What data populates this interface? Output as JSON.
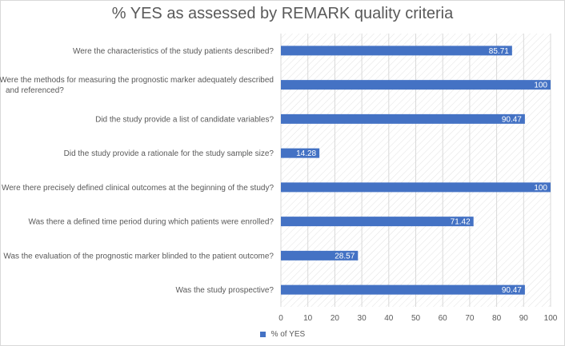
{
  "chart_data": {
    "type": "bar",
    "orientation": "horizontal",
    "title": "% YES as assessed by REMARK quality criteria",
    "categories": [
      "Were the characteristics of the study patients described?",
      "Were the methods for measuring the prognostic marker adequately described and referenced?",
      "Did the study provide a list of candidate variables?",
      "Did the study provide a rationale for the study sample size?",
      "Were there precisely defined clinical outcomes at the beginning of the study?",
      "Was there a defined time period during which patients were enrolled?",
      "Was the evaluation of the prognostic marker blinded to the patient outcome?",
      "Was the study prospective?"
    ],
    "category_lines": [
      [
        "Were the characteristics of the study patients described?"
      ],
      [
        "Were the methods for measuring the prognostic marker adequately described",
        "and referenced?"
      ],
      [
        "Did the study provide a list of candidate variables?"
      ],
      [
        "Did the study provide a rationale for the study sample size?"
      ],
      [
        "Were there precisely defined clinical outcomes at the beginning of the study?"
      ],
      [
        "Was there a defined time period during which patients were enrolled?"
      ],
      [
        "Was the evaluation of the prognostic marker blinded to the patient outcome?"
      ],
      [
        "Was the study prospective?"
      ]
    ],
    "series": [
      {
        "name": "% of YES",
        "values": [
          85.71,
          100,
          90.47,
          14.28,
          100,
          71.42,
          28.57,
          90.47
        ],
        "labels": [
          "85.71",
          "100",
          "90.47",
          "14.28",
          "100",
          "71.42",
          "28.57",
          "90.47"
        ]
      }
    ],
    "xlim": [
      0,
      100
    ],
    "xticks": [
      "0",
      "10",
      "20",
      "30",
      "40",
      "50",
      "60",
      "70",
      "80",
      "90",
      "100"
    ],
    "xlabel": "",
    "ylabel": "",
    "legend_position": "bottom",
    "grid": true,
    "colors": {
      "bar": "#4472c4",
      "grid": "#d9d9d9",
      "hatch": "#e3e3e3",
      "text": "#595959",
      "label_text": "#ffffff"
    }
  }
}
